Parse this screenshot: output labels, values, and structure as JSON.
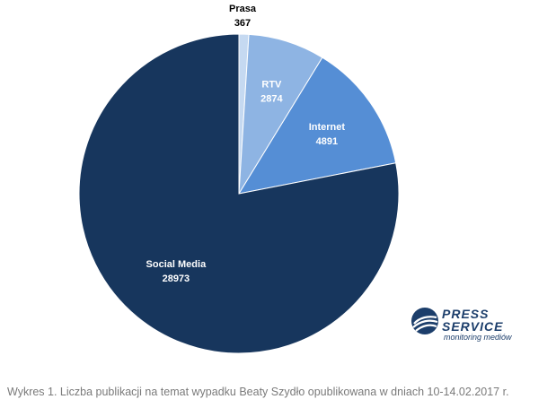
{
  "chart_data": {
    "type": "pie",
    "title": "",
    "slices": [
      {
        "label": "Prasa",
        "value": 367,
        "color": "#c5d9f1"
      },
      {
        "label": "RTV",
        "value": 2874,
        "color": "#8eb4e3"
      },
      {
        "label": "Internet",
        "value": 4891,
        "color": "#558ed5"
      },
      {
        "label": "Social Media",
        "value": 28973,
        "color": "#17365d"
      }
    ],
    "start_angle_deg": 0,
    "direction": "clockwise",
    "label_color_default": "#ffffff",
    "label_color_outside": "#000000",
    "legend": "none"
  },
  "logo": {
    "line1": "PRESS",
    "line2": "SERVICE",
    "tagline": "monitoring mediów",
    "color": "#1c3e6b"
  },
  "caption": "Wykres 1. Liczba publikacji na temat wypadku Beaty Szydło opublikowana w dniach 10-14.02.2017 r."
}
